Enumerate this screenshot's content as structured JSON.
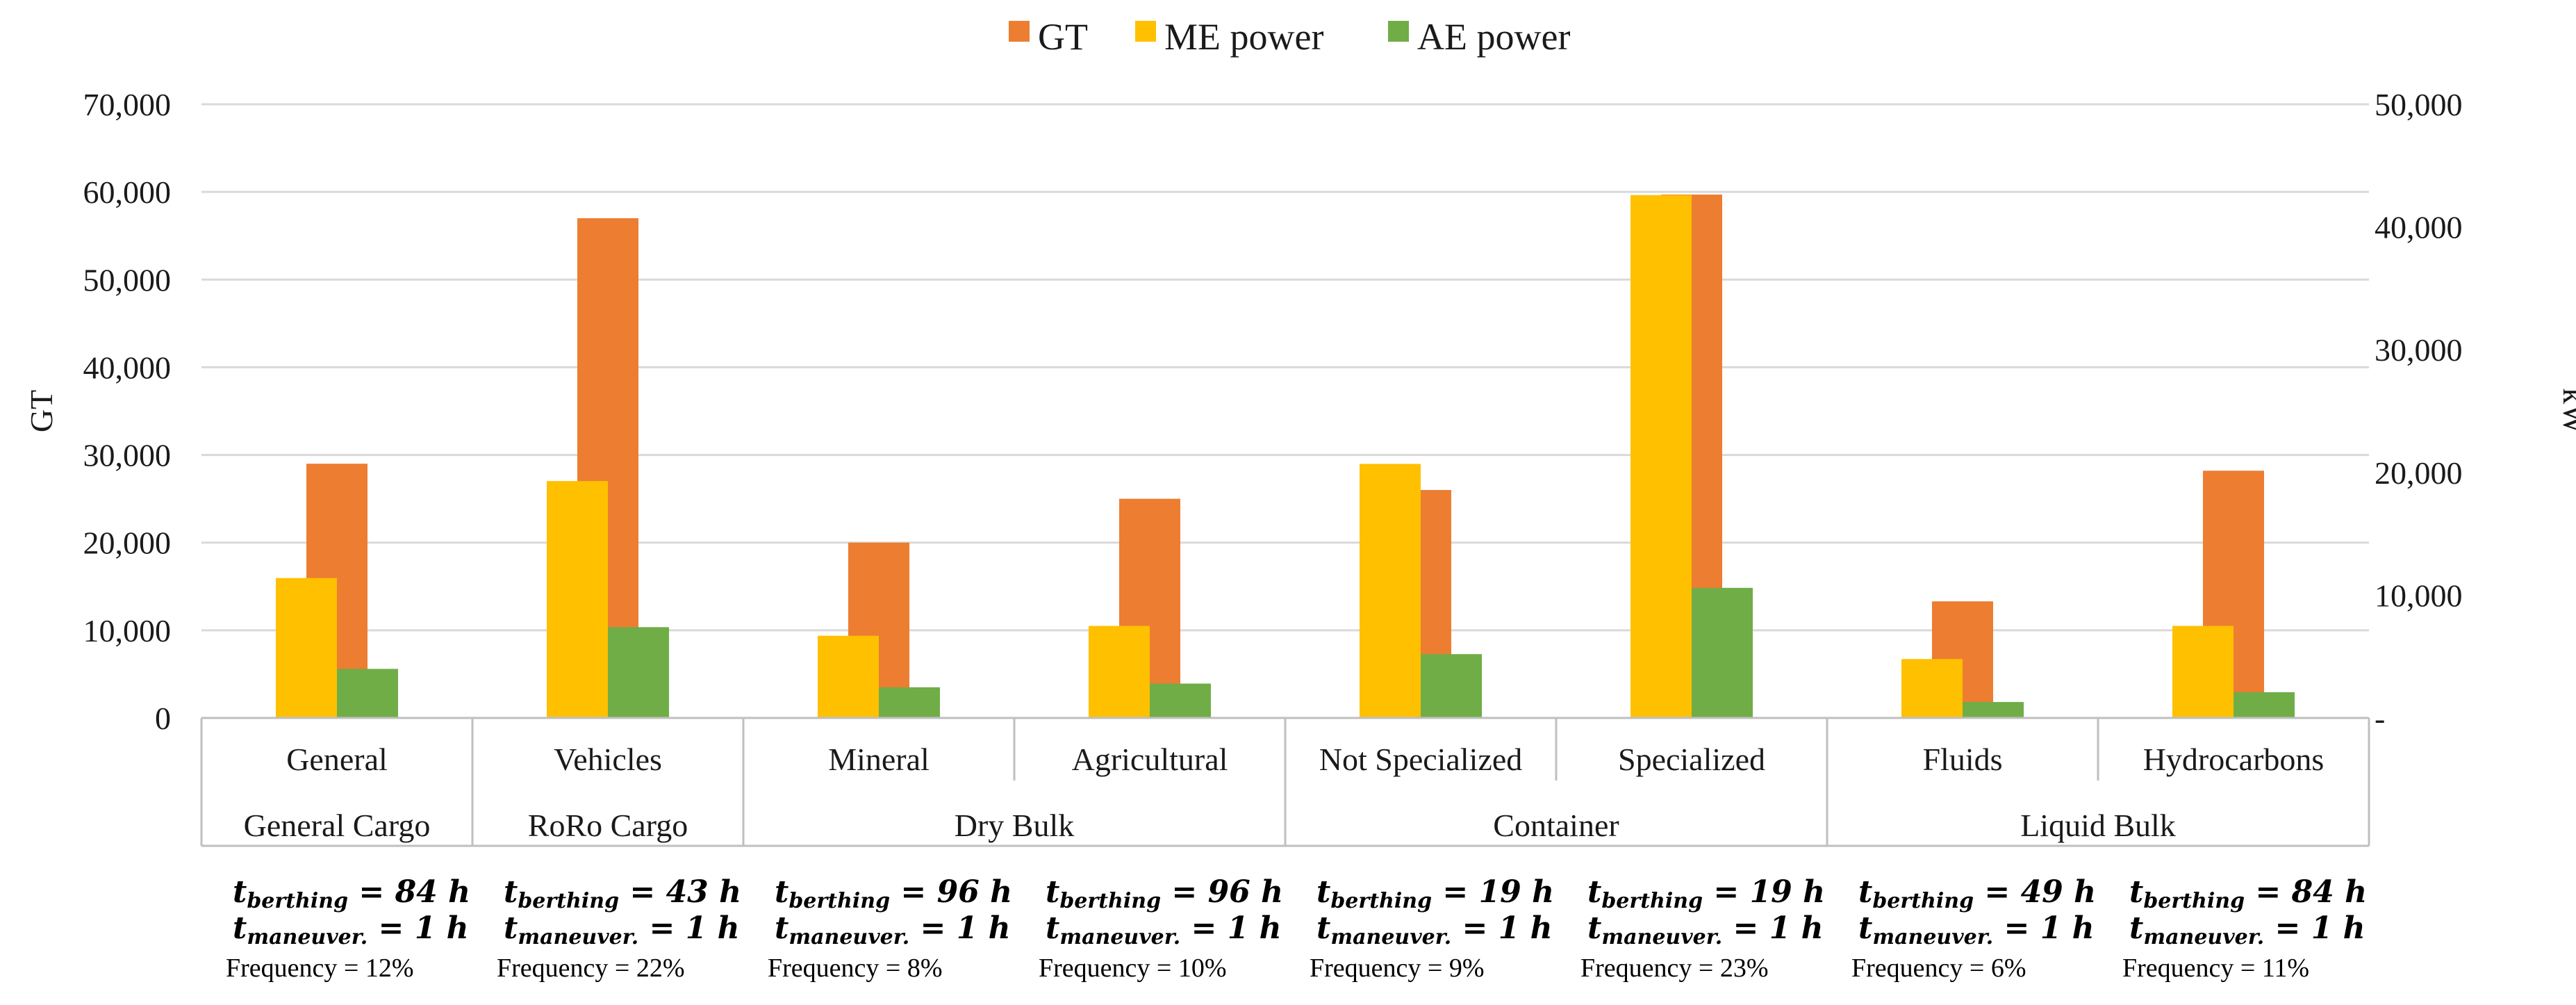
{
  "chart_data": {
    "type": "bar",
    "legend": [
      {
        "name": "GT",
        "color": "#ED7D31"
      },
      {
        "name": "ME power",
        "color": "#FFC000"
      },
      {
        "name": "AE power",
        "color": "#70AD47"
      }
    ],
    "categories": [
      "General",
      "Vehicles",
      "Mineral",
      "Agricultural",
      "Not Specialized",
      "Specialized",
      "Fluids",
      "Hydrocarbons"
    ],
    "groups": [
      {
        "label": "General Cargo",
        "span": [
          0,
          0
        ]
      },
      {
        "label": "RoRo Cargo",
        "span": [
          1,
          1
        ]
      },
      {
        "label": "Dry Bulk",
        "span": [
          2,
          3
        ]
      },
      {
        "label": "Container",
        "span": [
          4,
          5
        ]
      },
      {
        "label": "Liquid Bulk",
        "span": [
          6,
          7
        ]
      }
    ],
    "series": [
      {
        "name": "GT",
        "axis": "left",
        "values": [
          29000,
          57000,
          20000,
          25000,
          26000,
          59700,
          13300,
          28200
        ]
      },
      {
        "name": "ME power",
        "axis": "right",
        "values": [
          11400,
          19300,
          6700,
          7500,
          20700,
          42600,
          4800,
          7500
        ]
      },
      {
        "name": "AE power",
        "axis": "right",
        "values": [
          4000,
          7400,
          2500,
          2800,
          5200,
          10600,
          1300,
          2100
        ]
      }
    ],
    "y_left": {
      "label": "GT",
      "lim": [
        0,
        70000
      ],
      "ticks": [
        "0",
        "10,000",
        "20,000",
        "30,000",
        "40,000",
        "50,000",
        "60,000",
        "70,000"
      ]
    },
    "y_right": {
      "label": "kW",
      "lim": [
        0,
        50000
      ],
      "ticks": [
        "-",
        "10,000",
        "20,000",
        "30,000",
        "40,000",
        "50,000"
      ]
    },
    "grid": true,
    "annotations": [
      {
        "berthing": "84",
        "maneuver": "1",
        "frequency": "Frequency = 12%"
      },
      {
        "berthing": "43",
        "maneuver": "1",
        "frequency": "Frequency = 22%"
      },
      {
        "berthing": "96",
        "maneuver": "1",
        "frequency": "Frequency = 8%"
      },
      {
        "berthing": "96",
        "maneuver": "1",
        "frequency": "Frequency = 10%"
      },
      {
        "berthing": "19",
        "maneuver": "1",
        "frequency": "Frequency = 9%"
      },
      {
        "berthing": "19",
        "maneuver": "1",
        "frequency": "Frequency = 23%"
      },
      {
        "berthing": "49",
        "maneuver": "1",
        "frequency": "Frequency = 6%"
      },
      {
        "berthing": "84",
        "maneuver": "1",
        "frequency": "Frequency = 11%"
      }
    ],
    "annotation_symbols": {
      "t": "t",
      "berthing": "berthing",
      "maneuver": "maneuver.",
      "equals": " = ",
      "unit": " h"
    }
  }
}
